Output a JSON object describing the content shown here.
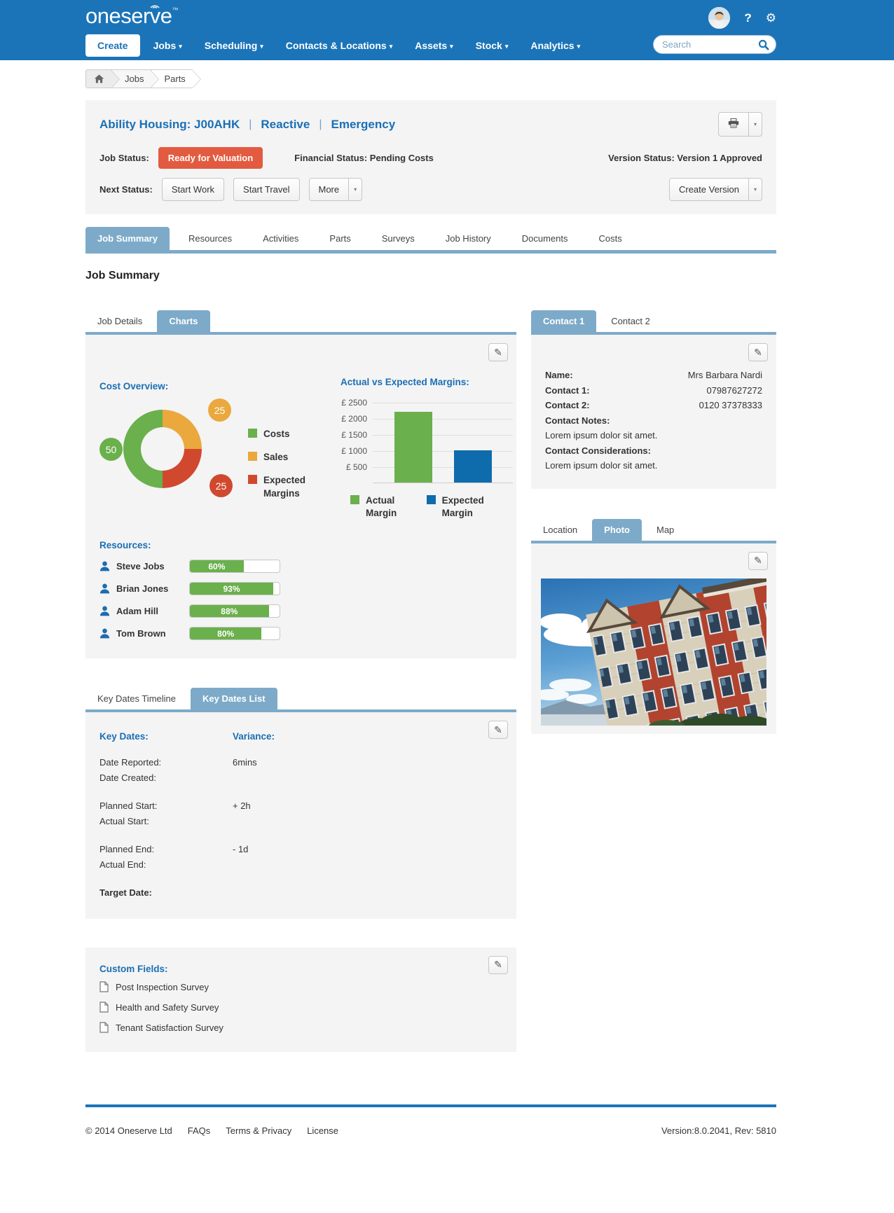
{
  "icons": {
    "caret": "▾",
    "help": "?",
    "gear": "⚙",
    "pencil": "✎",
    "tm": "™"
  },
  "brand": {
    "logo_part1": "oneser",
    "logo_v": "v",
    "logo_part2": "e"
  },
  "nav": {
    "create_label": "Create",
    "items": [
      {
        "label": "Jobs"
      },
      {
        "label": "Scheduling"
      },
      {
        "label": "Contacts & Locations"
      },
      {
        "label": "Assets"
      },
      {
        "label": "Stock"
      },
      {
        "label": "Analytics"
      }
    ],
    "search_placeholder": "Search"
  },
  "breadcrumb": {
    "items": [
      "Jobs",
      "Parts"
    ]
  },
  "job_header": {
    "title": "Ability Housing: J00AHK",
    "separator": "|",
    "type": "Reactive",
    "priority": "Emergency",
    "job_status_label": "Job Status:",
    "job_status_value": "Ready for Valuation",
    "job_status_color": "#e25b40",
    "financial_status": "Financial Status: Pending Costs",
    "version_status": "Version Status: Version 1 Approved",
    "next_status_label": "Next Status:",
    "start_work_label": "Start Work",
    "start_travel_label": "Start Travel",
    "more_label": "More",
    "create_version_label": "Create Version"
  },
  "tabs": [
    "Job Summary",
    "Resources",
    "Activities",
    "Parts",
    "Surveys",
    "Job History",
    "Documents",
    "Costs"
  ],
  "page_heading": "Job Summary",
  "charts_panel": {
    "tabs": [
      "Job Details",
      "Charts"
    ],
    "active_tab": "Charts"
  },
  "chart_data": [
    {
      "type": "pie",
      "donut": true,
      "title": "Cost Overview:",
      "labels": [
        "Costs",
        "Sales",
        "Expected Margins"
      ],
      "values": [
        50,
        25,
        25
      ],
      "colors": [
        "#6ab04c",
        "#eaa83d",
        "#d0492f"
      ],
      "rotation_order": [
        1,
        2,
        0
      ],
      "legend_position": "right"
    },
    {
      "type": "bar",
      "title": "Actual vs Expected Margins:",
      "categories": [
        "Actual Margin",
        "Expected Margin"
      ],
      "values": [
        2200,
        1000
      ],
      "colors": [
        "#6ab04c",
        "#0e6cad"
      ],
      "ylim": [
        0,
        2500
      ],
      "ytick_labels": [
        "£ 2500",
        "£ 2000",
        "£ 1500",
        "£ 1000",
        "£ 500"
      ],
      "grid": true,
      "legend_position": "bottom"
    }
  ],
  "resources": {
    "heading": "Resources:",
    "items": [
      {
        "name": "Steve Jobs",
        "percent": 60,
        "percent_label": "60%"
      },
      {
        "name": "Brian Jones",
        "percent": 93,
        "percent_label": "93%"
      },
      {
        "name": "Adam Hill",
        "percent": 88,
        "percent_label": "88%"
      },
      {
        "name": "Tom Brown",
        "percent": 80,
        "percent_label": "80%"
      }
    ],
    "bar_color": "#6ab04c"
  },
  "contact_panel": {
    "tabs": [
      "Contact 1",
      "Contact 2"
    ],
    "active_tab": "Contact 1",
    "fields": [
      {
        "label": "Name:",
        "value": "Mrs Barbara Nardi"
      },
      {
        "label": "Contact 1:",
        "value": "07987627272"
      },
      {
        "label": "Contact 2:",
        "value": "0120 37378333"
      }
    ],
    "notes_label": "Contact Notes:",
    "notes_value": "Lorem ipsum dolor sit amet.",
    "considerations_label": "Contact Considerations:",
    "considerations_value": "Lorem ipsum dolor sit amet."
  },
  "location_panel": {
    "tabs": [
      "Location",
      "Photo",
      "Map"
    ],
    "active_tab": "Photo"
  },
  "key_dates_panel": {
    "tabs": [
      "Key Dates Timeline",
      "Key Dates List"
    ],
    "active_tab": "Key Dates List",
    "col1_heading": "Key Dates:",
    "col2_heading": "Variance:",
    "groups": [
      {
        "rows": [
          {
            "label": "Date Reported:",
            "variance": "6mins"
          },
          {
            "label": "Date Created:",
            "variance": ""
          }
        ]
      },
      {
        "rows": [
          {
            "label": "Planned Start:",
            "variance": "+ 2h"
          },
          {
            "label": "Actual Start:",
            "variance": ""
          }
        ]
      },
      {
        "rows": [
          {
            "label": "Planned End:",
            "variance": "- 1d"
          },
          {
            "label": "Actual End:",
            "variance": ""
          }
        ]
      },
      {
        "rows": [
          {
            "label": "Target Date:",
            "variance": ""
          }
        ]
      }
    ]
  },
  "custom_fields": {
    "heading": "Custom Fields:",
    "items": [
      "Post Inspection Survey",
      "Health and Safety Survey",
      "Tenant Satisfaction Survey"
    ]
  },
  "footer": {
    "copyright": "© 2014 Oneserve Ltd",
    "links": [
      "FAQs",
      "Terms & Privacy",
      "License"
    ],
    "version": "Version:8.0.2041, Rev: 5810"
  },
  "colors": {
    "topbar": "#1b74b8",
    "active_tab": "#7daac9",
    "heading_blue": "#1a6fb5",
    "panel_bg": "#f4f4f4"
  }
}
